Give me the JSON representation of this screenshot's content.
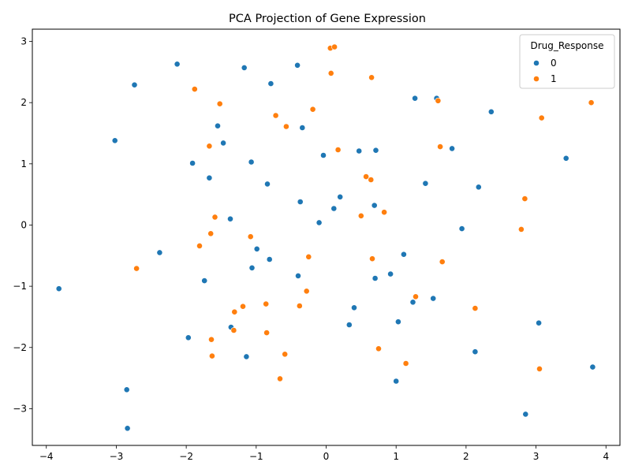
{
  "chart_data": {
    "type": "scatter",
    "title": "PCA Projection of Gene Expression",
    "xlabel": "",
    "ylabel": "",
    "xlim": [
      -4.2,
      4.2
    ],
    "ylim": [
      -3.6,
      3.2
    ],
    "xticks": [
      -4,
      -3,
      -2,
      -1,
      0,
      1,
      2,
      3,
      4
    ],
    "yticks": [
      -3,
      -2,
      -1,
      0,
      1,
      2,
      3
    ],
    "grid": false,
    "legend": {
      "title": "Drug_Response",
      "placement": "top-right"
    },
    "series": [
      {
        "name": "0",
        "color": "#1f77b4",
        "points": [
          [
            -3.82,
            -1.04
          ],
          [
            -3.02,
            1.38
          ],
          [
            -2.85,
            -2.69
          ],
          [
            -2.84,
            -3.32
          ],
          [
            -2.74,
            2.29
          ],
          [
            -2.38,
            -0.45
          ],
          [
            -2.13,
            2.63
          ],
          [
            -1.97,
            -1.84
          ],
          [
            -1.91,
            1.01
          ],
          [
            -1.74,
            -0.91
          ],
          [
            -1.67,
            0.77
          ],
          [
            -1.55,
            1.62
          ],
          [
            -1.47,
            1.34
          ],
          [
            -1.37,
            0.1
          ],
          [
            -1.36,
            -1.67
          ],
          [
            -1.17,
            2.57
          ],
          [
            -1.14,
            -2.15
          ],
          [
            -1.07,
            1.03
          ],
          [
            -1.06,
            -0.7
          ],
          [
            -0.99,
            -0.39
          ],
          [
            -0.84,
            0.67
          ],
          [
            -0.81,
            -0.56
          ],
          [
            -0.79,
            2.31
          ],
          [
            -0.41,
            2.61
          ],
          [
            -0.4,
            -0.83
          ],
          [
            -0.37,
            0.38
          ],
          [
            -0.34,
            1.59
          ],
          [
            -0.1,
            0.04
          ],
          [
            -0.04,
            1.14
          ],
          [
            0.11,
            0.27
          ],
          [
            0.2,
            0.46
          ],
          [
            0.33,
            -1.63
          ],
          [
            0.4,
            -1.35
          ],
          [
            0.47,
            1.21
          ],
          [
            0.69,
            0.32
          ],
          [
            0.7,
            -0.87
          ],
          [
            0.71,
            1.22
          ],
          [
            0.92,
            -0.8
          ],
          [
            1.0,
            -2.55
          ],
          [
            1.03,
            -1.58
          ],
          [
            1.11,
            -0.48
          ],
          [
            1.24,
            -1.26
          ],
          [
            1.27,
            2.07
          ],
          [
            1.42,
            0.68
          ],
          [
            1.53,
            -1.2
          ],
          [
            1.58,
            2.07
          ],
          [
            1.8,
            1.25
          ],
          [
            1.94,
            -0.06
          ],
          [
            2.13,
            -2.07
          ],
          [
            2.18,
            0.62
          ],
          [
            2.36,
            1.85
          ],
          [
            2.85,
            -3.09
          ],
          [
            3.04,
            -1.6
          ],
          [
            3.43,
            1.09
          ],
          [
            3.81,
            -2.32
          ]
        ]
      },
      {
        "name": "1",
        "color": "#ff7f0e",
        "points": [
          [
            -2.71,
            -0.71
          ],
          [
            -1.88,
            2.22
          ],
          [
            -1.81,
            -0.34
          ],
          [
            -1.67,
            1.29
          ],
          [
            -1.65,
            -0.14
          ],
          [
            -1.64,
            -1.87
          ],
          [
            -1.63,
            -2.14
          ],
          [
            -1.59,
            0.13
          ],
          [
            -1.52,
            1.98
          ],
          [
            -1.31,
            -1.42
          ],
          [
            -1.32,
            -1.72
          ],
          [
            -1.19,
            -1.33
          ],
          [
            -1.08,
            -0.19
          ],
          [
            -0.86,
            -1.29
          ],
          [
            -0.85,
            -1.76
          ],
          [
            -0.72,
            1.79
          ],
          [
            -0.66,
            -2.51
          ],
          [
            -0.59,
            -2.11
          ],
          [
            -0.57,
            1.61
          ],
          [
            -0.38,
            -1.32
          ],
          [
            -0.28,
            -1.08
          ],
          [
            -0.25,
            -0.52
          ],
          [
            -0.19,
            1.89
          ],
          [
            0.06,
            2.89
          ],
          [
            0.07,
            2.48
          ],
          [
            0.12,
            2.91
          ],
          [
            0.17,
            1.23
          ],
          [
            0.5,
            0.15
          ],
          [
            0.57,
            0.79
          ],
          [
            0.64,
            0.74
          ],
          [
            0.65,
            2.41
          ],
          [
            0.66,
            -0.55
          ],
          [
            0.75,
            -2.02
          ],
          [
            0.83,
            0.21
          ],
          [
            1.14,
            -2.26
          ],
          [
            1.28,
            -1.17
          ],
          [
            1.6,
            2.03
          ],
          [
            1.63,
            1.28
          ],
          [
            1.66,
            -0.6
          ],
          [
            2.13,
            -1.36
          ],
          [
            2.79,
            -0.07
          ],
          [
            2.84,
            0.43
          ],
          [
            3.05,
            -2.35
          ],
          [
            3.08,
            1.75
          ],
          [
            3.79,
            2.0
          ]
        ]
      }
    ]
  }
}
